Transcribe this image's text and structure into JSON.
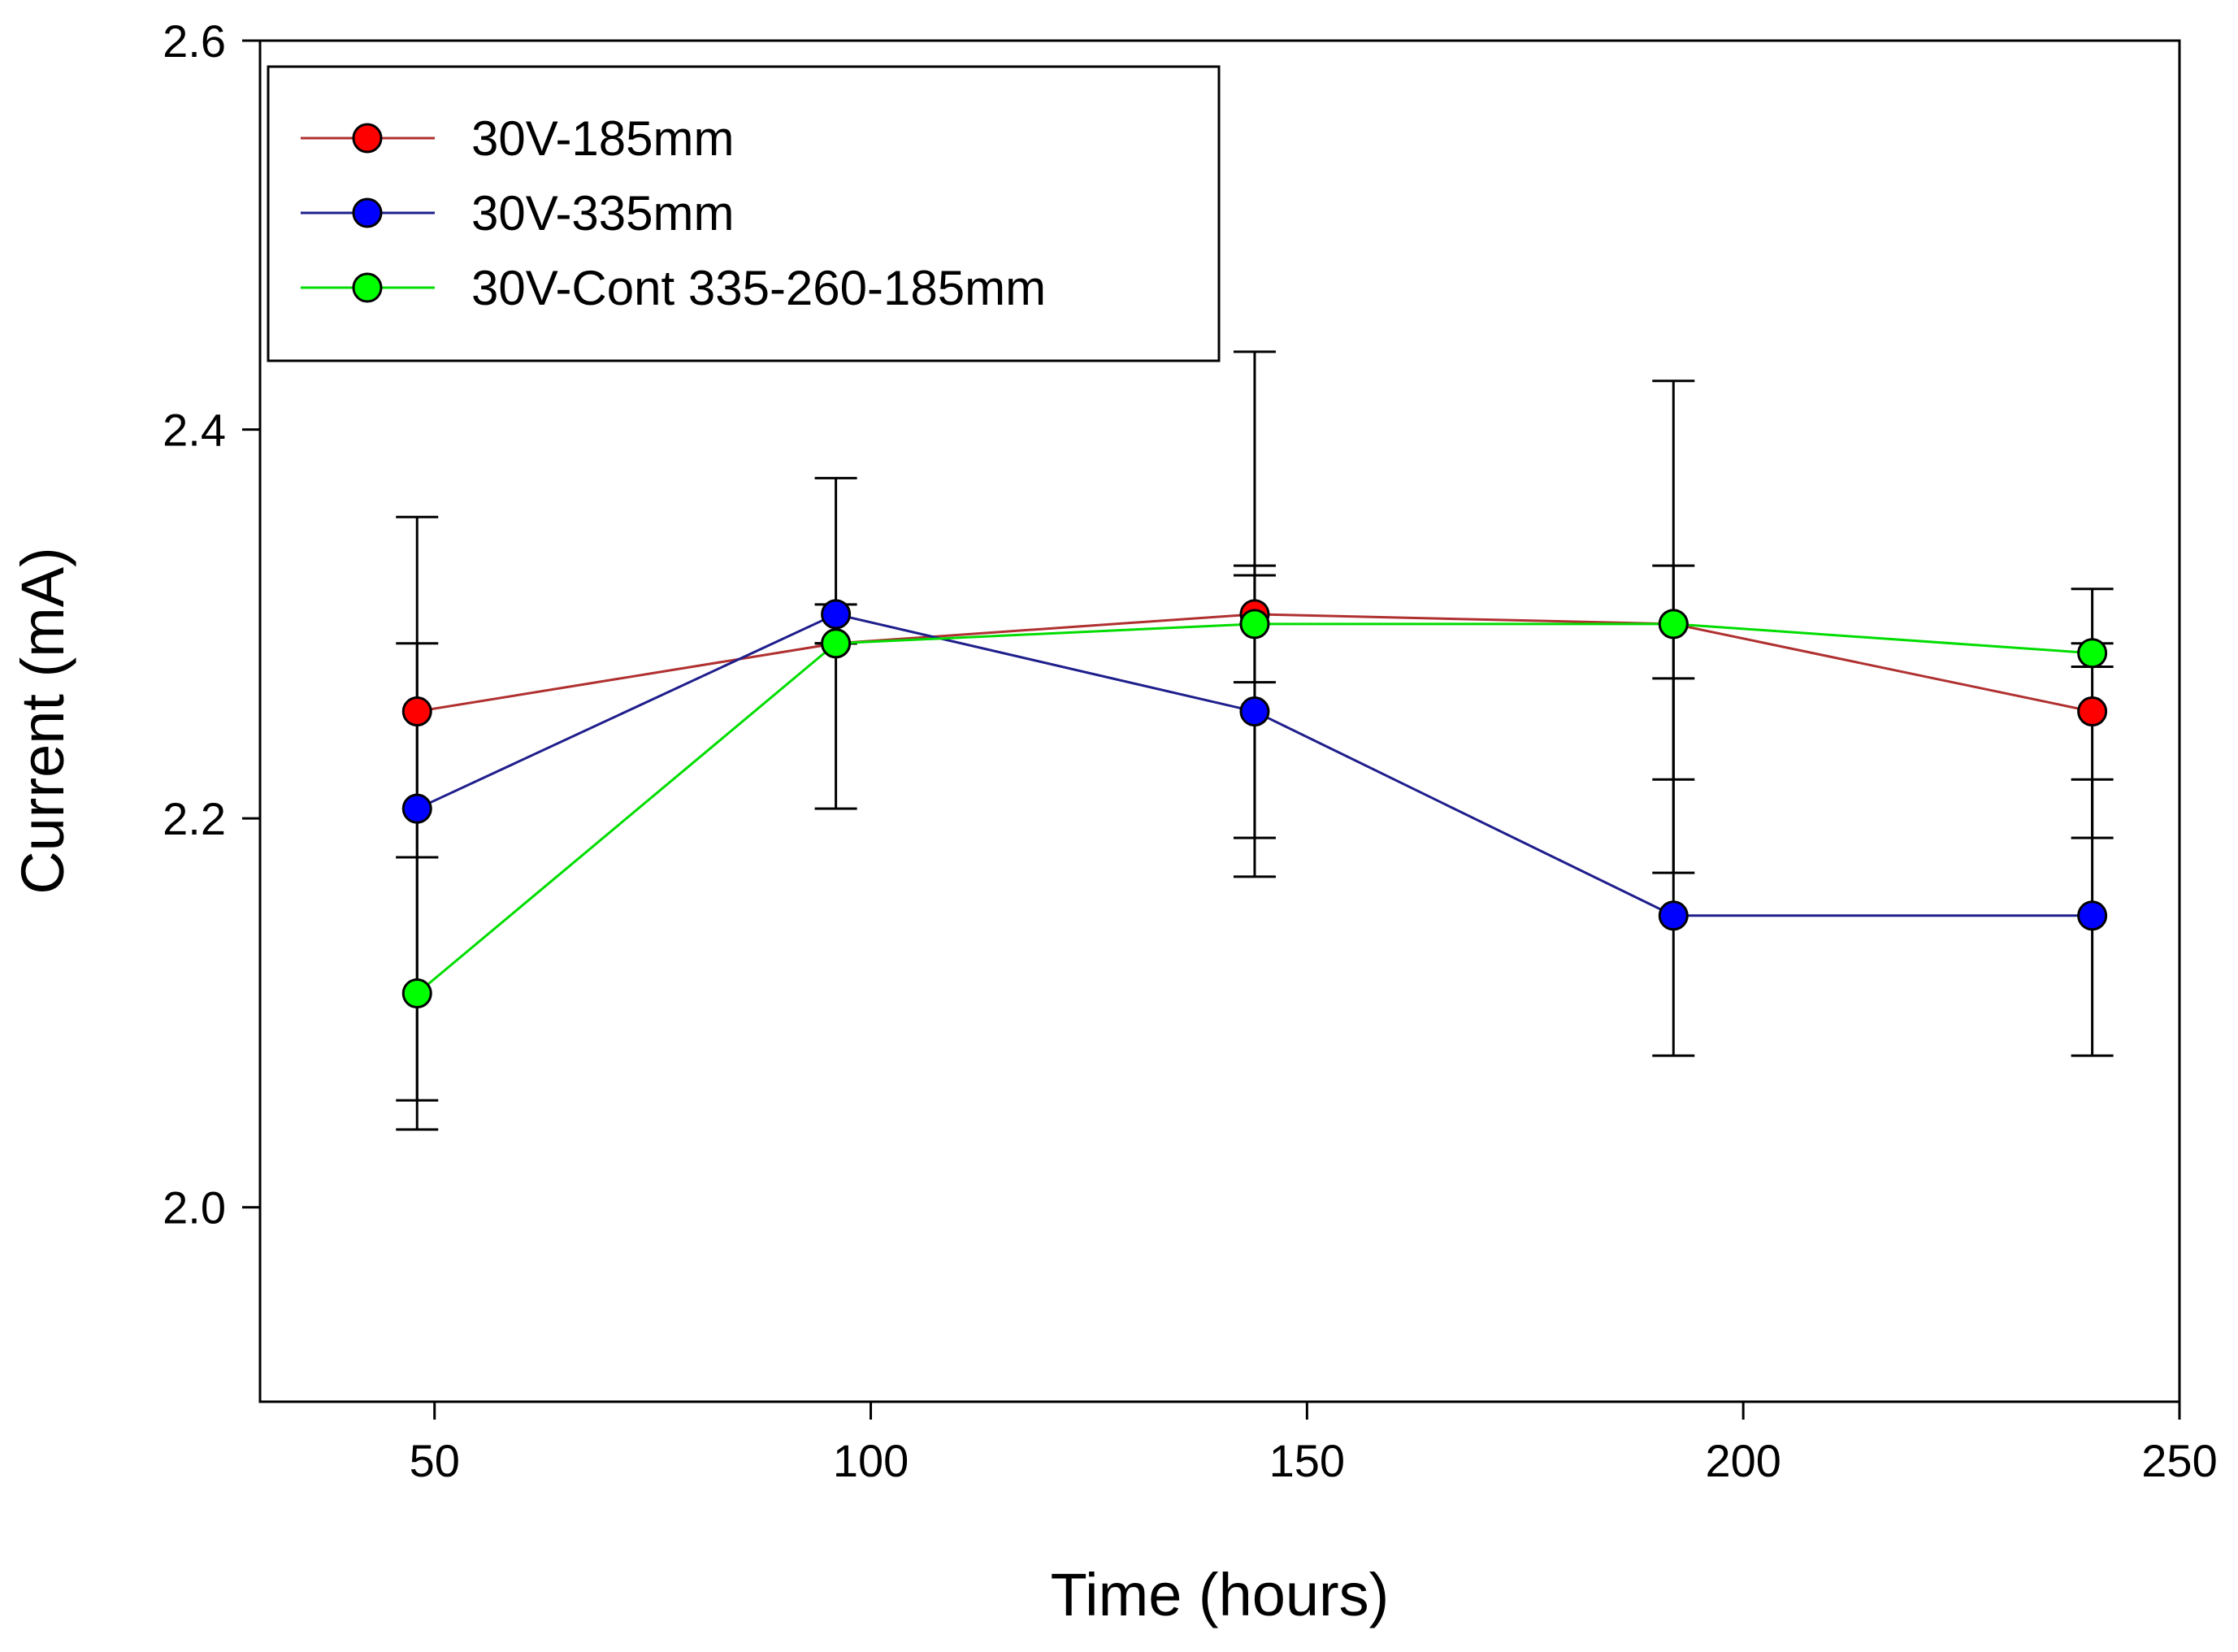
{
  "chart_data": {
    "type": "line",
    "title": "",
    "xlabel": "Time (hours)",
    "ylabel": "Current (mA)",
    "xlim": [
      30,
      250
    ],
    "ylim": [
      1.9,
      2.6
    ],
    "xticks": [
      50,
      100,
      150,
      200,
      250
    ],
    "yticks": [
      2.0,
      2.2,
      2.4,
      2.6
    ],
    "xtick_labels": [
      "50",
      "100",
      "150",
      "200",
      "250"
    ],
    "ytick_labels": [
      "2.0",
      "2.2",
      "2.4",
      "2.6"
    ],
    "grid": false,
    "legend_position": "top-left",
    "series": [
      {
        "name": "30V-185mm",
        "color": "#ff0000",
        "line_color": "#b03030",
        "x": [
          48,
          96,
          144,
          192,
          240
        ],
        "y": [
          2.255,
          2.29,
          2.305,
          2.3,
          2.255
        ],
        "err_low": [
          2.18,
          2.29,
          2.27,
          2.22,
          2.19
        ],
        "err_high": [
          2.29,
          2.31,
          2.33,
          2.33,
          2.29
        ]
      },
      {
        "name": "30V-335mm",
        "color": "#0000ff",
        "line_color": "#1e1e8c",
        "x": [
          48,
          96,
          144,
          192,
          240
        ],
        "y": [
          2.205,
          2.305,
          2.255,
          2.15,
          2.15
        ],
        "err_low": [
          2.055,
          2.205,
          2.17,
          2.078,
          2.078
        ],
        "err_high": [
          2.355,
          2.375,
          2.44,
          2.425,
          2.22
        ]
      },
      {
        "name": "30V-Cont 335-260-185mm",
        "color": "#00ff00",
        "line_color": "#00dd00",
        "x": [
          48,
          96,
          144,
          192,
          240
        ],
        "y": [
          2.11,
          2.29,
          2.3,
          2.3,
          2.285
        ],
        "err_low": [
          2.04,
          2.29,
          2.19,
          2.172,
          2.278
        ],
        "err_high": [
          2.18,
          2.29,
          2.325,
          2.272,
          2.318
        ]
      }
    ]
  }
}
